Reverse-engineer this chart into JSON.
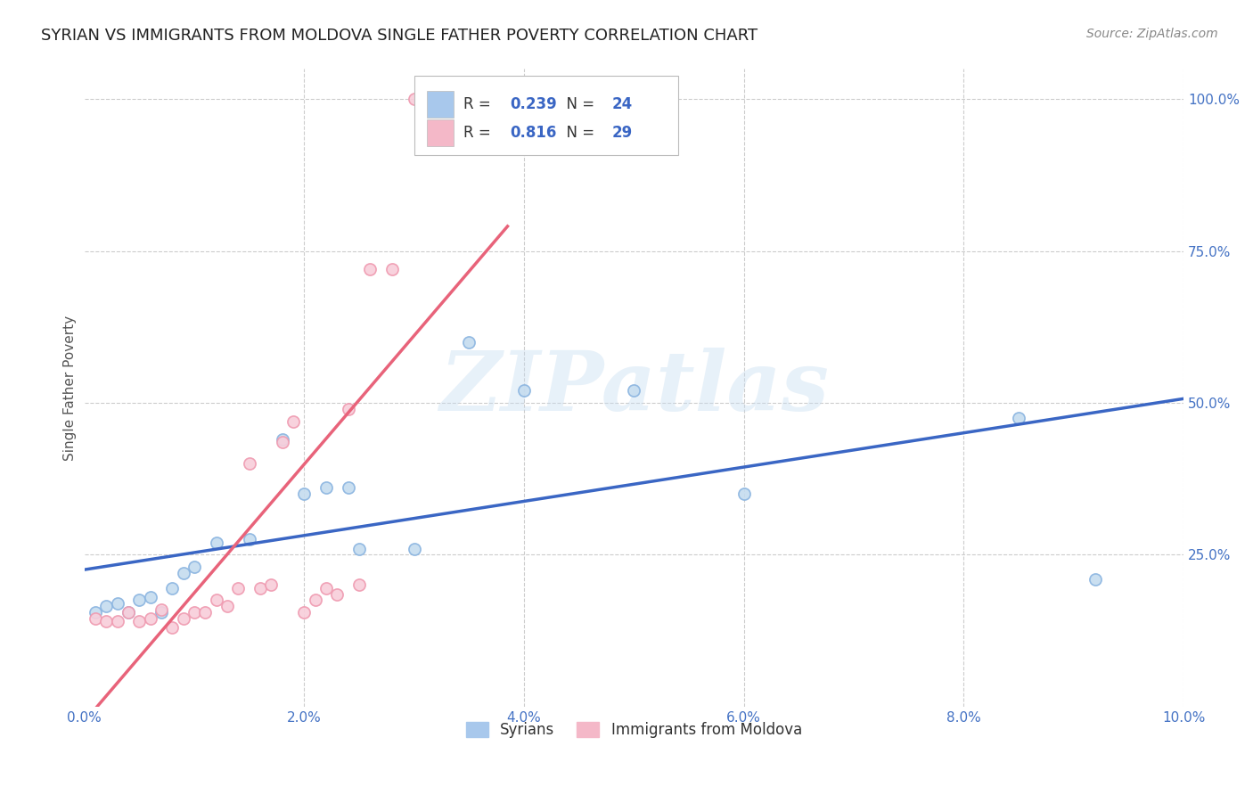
{
  "title": "SYRIAN VS IMMIGRANTS FROM MOLDOVA SINGLE FATHER POVERTY CORRELATION CHART",
  "source": "Source: ZipAtlas.com",
  "ylabel": "Single Father Poverty",
  "watermark": "ZIPatlas",
  "xlim": [
    0.0,
    0.1
  ],
  "ylim": [
    0.0,
    1.05
  ],
  "xtick_labels": [
    "0.0%",
    "2.0%",
    "4.0%",
    "6.0%",
    "8.0%",
    "10.0%"
  ],
  "xtick_vals": [
    0.0,
    0.02,
    0.04,
    0.06,
    0.08,
    0.1
  ],
  "ytick_labels": [
    "25.0%",
    "50.0%",
    "75.0%",
    "100.0%"
  ],
  "ytick_vals": [
    0.25,
    0.5,
    0.75,
    1.0
  ],
  "legend_entries": [
    {
      "label": "Syrians",
      "R": "0.239",
      "N": "24",
      "color": "#A8C8EC"
    },
    {
      "label": "Immigrants from Moldova",
      "R": "0.816",
      "N": "29",
      "color": "#F4B8C8"
    }
  ],
  "syrians_x": [
    0.001,
    0.002,
    0.003,
    0.004,
    0.005,
    0.006,
    0.007,
    0.008,
    0.009,
    0.01,
    0.012,
    0.015,
    0.018,
    0.02,
    0.022,
    0.024,
    0.025,
    0.03,
    0.035,
    0.04,
    0.05,
    0.06,
    0.085,
    0.092
  ],
  "syrians_y": [
    0.155,
    0.165,
    0.17,
    0.155,
    0.175,
    0.18,
    0.155,
    0.195,
    0.22,
    0.23,
    0.27,
    0.275,
    0.44,
    0.35,
    0.36,
    0.36,
    0.26,
    0.26,
    0.6,
    0.52,
    0.52,
    0.35,
    0.475,
    0.21
  ],
  "moldova_x": [
    0.001,
    0.002,
    0.003,
    0.004,
    0.005,
    0.006,
    0.007,
    0.008,
    0.009,
    0.01,
    0.011,
    0.012,
    0.013,
    0.014,
    0.015,
    0.016,
    0.017,
    0.018,
    0.019,
    0.02,
    0.021,
    0.022,
    0.023,
    0.024,
    0.025,
    0.026,
    0.028,
    0.03,
    0.035
  ],
  "moldova_y": [
    0.145,
    0.14,
    0.14,
    0.155,
    0.14,
    0.145,
    0.16,
    0.13,
    0.145,
    0.155,
    0.155,
    0.175,
    0.165,
    0.195,
    0.4,
    0.195,
    0.2,
    0.435,
    0.47,
    0.155,
    0.175,
    0.195,
    0.185,
    0.49,
    0.2,
    0.72,
    0.72,
    1.0,
    1.0
  ],
  "syrian_R": 0.239,
  "moldova_R": 0.816,
  "syrian_line_color": "#3A66C4",
  "moldova_line_color": "#E8637A",
  "dot_fill_syrian": "#C5DCEF",
  "dot_fill_moldova": "#F8CEDA",
  "dot_edge_syrian": "#8AB4E0",
  "dot_edge_moldova": "#EF9AB0",
  "background_color": "#FFFFFF",
  "grid_color": "#CCCCCC",
  "title_fontsize": 13,
  "axis_label_fontsize": 11,
  "tick_fontsize": 11,
  "dot_size": 90,
  "line_width": 2.5
}
